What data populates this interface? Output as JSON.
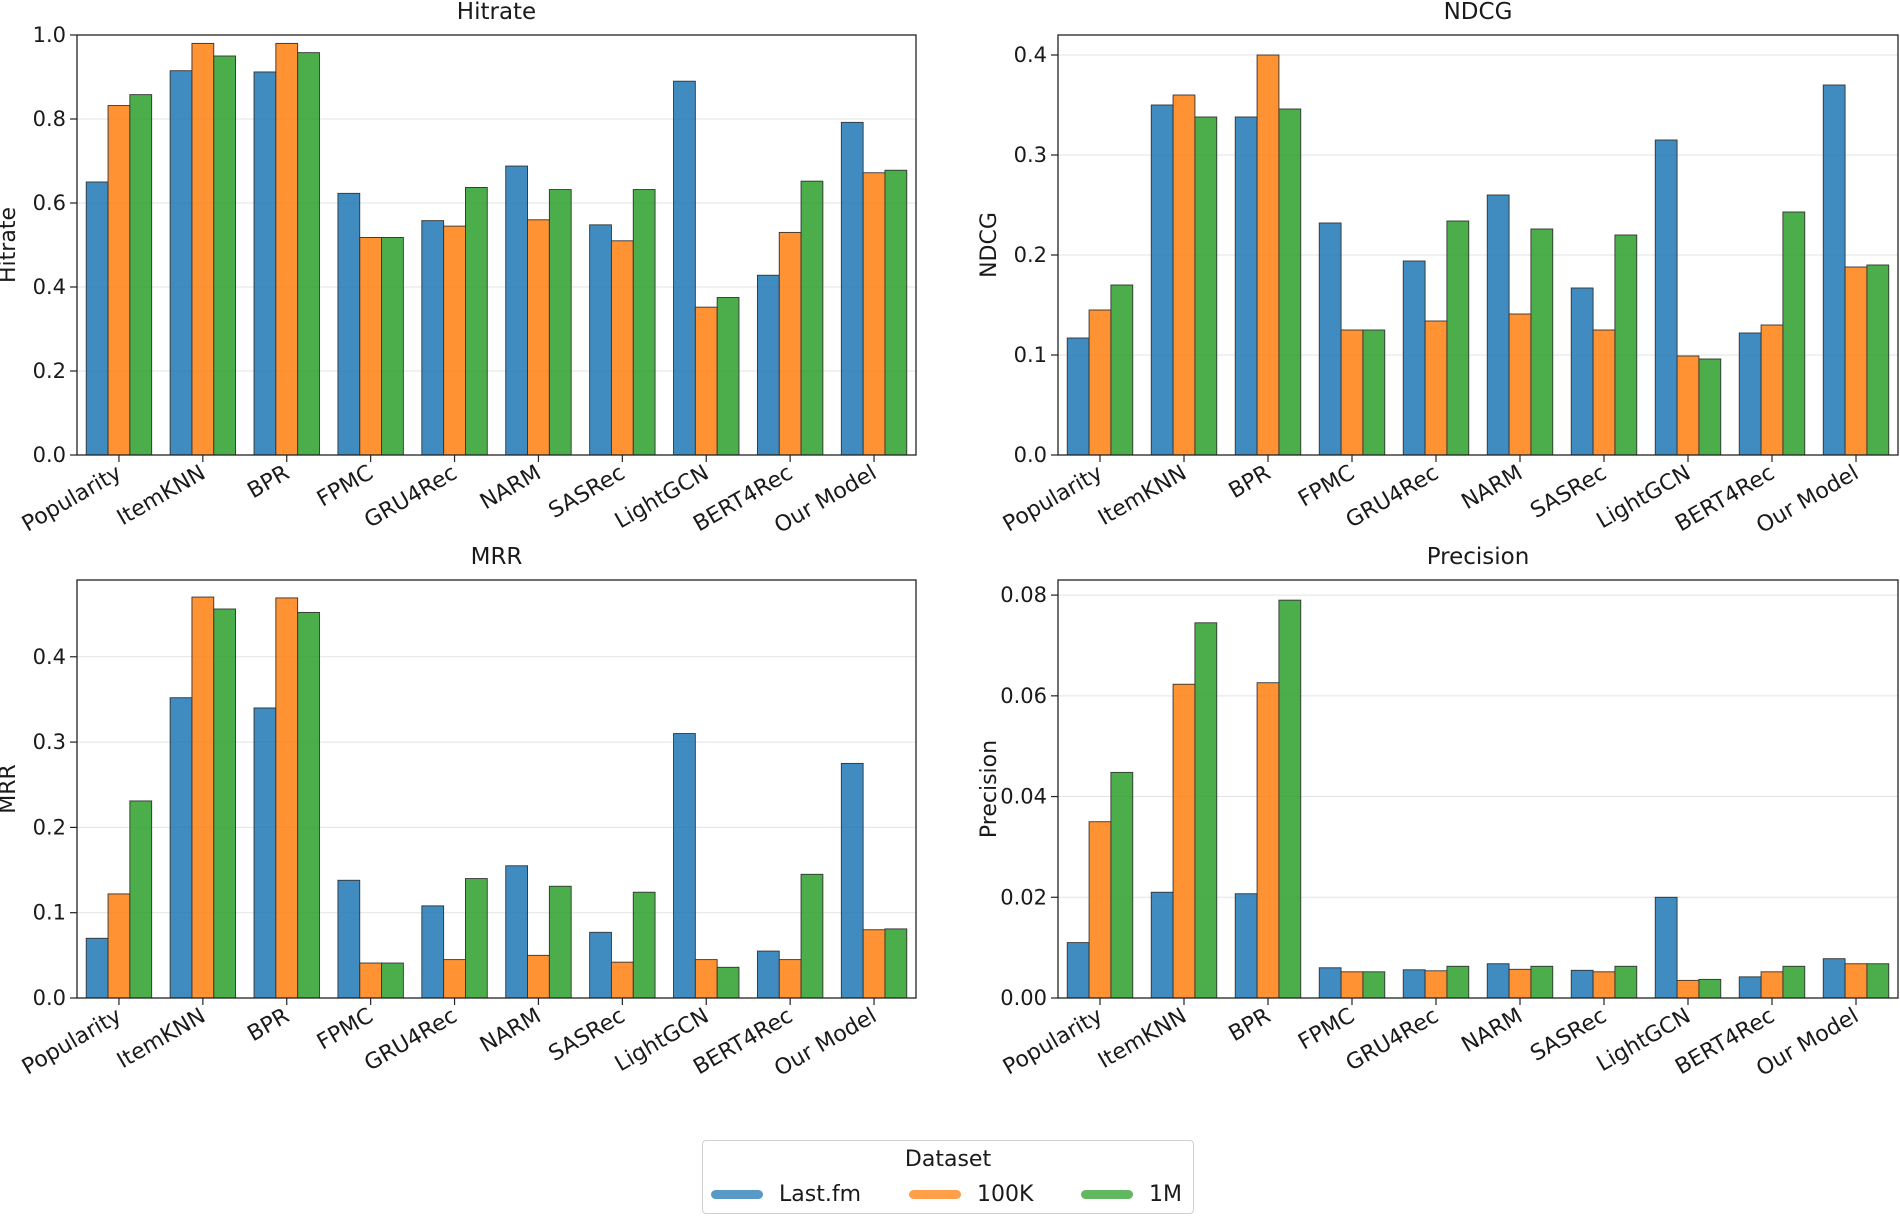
{
  "chart_data": [
    {
      "type": "bar",
      "title": "Hitrate",
      "xlabel": "",
      "ylabel": "Hitrate",
      "ylim": [
        0,
        1.0
      ],
      "yticks": [
        "0.0",
        "0.2",
        "0.4",
        "0.6",
        "0.8",
        "1.0"
      ],
      "categories": [
        "Popularity",
        "ItemKNN",
        "BPR",
        "FPMC",
        "GRU4Rec",
        "NARM",
        "SASRec",
        "LightGCN",
        "BERT4Rec",
        "Our Model"
      ],
      "series": [
        {
          "name": "Last.fm",
          "values": [
            0.65,
            0.915,
            0.912,
            0.623,
            0.558,
            0.688,
            0.548,
            0.89,
            0.428,
            0.792
          ]
        },
        {
          "name": "100K",
          "values": [
            0.832,
            0.98,
            0.98,
            0.518,
            0.545,
            0.56,
            0.51,
            0.352,
            0.53,
            0.672
          ]
        },
        {
          "name": "1M",
          "values": [
            0.858,
            0.95,
            0.958,
            0.518,
            0.637,
            0.632,
            0.632,
            0.375,
            0.652,
            0.678
          ]
        }
      ],
      "grid": "horizontal"
    },
    {
      "type": "bar",
      "title": "NDCG",
      "xlabel": "",
      "ylabel": "NDCG",
      "ylim": [
        0,
        0.42
      ],
      "yticks": [
        "0.0",
        "0.1",
        "0.2",
        "0.3",
        "0.4"
      ],
      "categories": [
        "Popularity",
        "ItemKNN",
        "BPR",
        "FPMC",
        "GRU4Rec",
        "NARM",
        "SASRec",
        "LightGCN",
        "BERT4Rec",
        "Our Model"
      ],
      "series": [
        {
          "name": "Last.fm",
          "values": [
            0.117,
            0.35,
            0.338,
            0.232,
            0.194,
            0.26,
            0.167,
            0.315,
            0.122,
            0.37
          ]
        },
        {
          "name": "100K",
          "values": [
            0.145,
            0.36,
            0.4,
            0.125,
            0.134,
            0.141,
            0.125,
            0.099,
            0.13,
            0.188
          ]
        },
        {
          "name": "1M",
          "values": [
            0.17,
            0.338,
            0.346,
            0.125,
            0.234,
            0.226,
            0.22,
            0.096,
            0.243,
            0.19
          ]
        }
      ],
      "grid": "horizontal"
    },
    {
      "type": "bar",
      "title": "MRR",
      "xlabel": "",
      "ylabel": "MRR",
      "ylim": [
        0,
        0.49
      ],
      "yticks": [
        "0.0",
        "0.1",
        "0.2",
        "0.3",
        "0.4"
      ],
      "categories": [
        "Popularity",
        "ItemKNN",
        "BPR",
        "FPMC",
        "GRU4Rec",
        "NARM",
        "SASRec",
        "LightGCN",
        "BERT4Rec",
        "Our Model"
      ],
      "series": [
        {
          "name": "Last.fm",
          "values": [
            0.07,
            0.352,
            0.34,
            0.138,
            0.108,
            0.155,
            0.077,
            0.31,
            0.055,
            0.275
          ]
        },
        {
          "name": "100K",
          "values": [
            0.122,
            0.47,
            0.469,
            0.041,
            0.045,
            0.05,
            0.042,
            0.045,
            0.045,
            0.08
          ]
        },
        {
          "name": "1M",
          "values": [
            0.231,
            0.456,
            0.452,
            0.041,
            0.14,
            0.131,
            0.124,
            0.036,
            0.145,
            0.081
          ]
        }
      ],
      "grid": "horizontal"
    },
    {
      "type": "bar",
      "title": "Precision",
      "xlabel": "",
      "ylabel": "Precision",
      "ylim": [
        0,
        0.083
      ],
      "yticks": [
        "0.00",
        "0.02",
        "0.04",
        "0.06",
        "0.08"
      ],
      "categories": [
        "Popularity",
        "ItemKNN",
        "BPR",
        "FPMC",
        "GRU4Rec",
        "NARM",
        "SASRec",
        "LightGCN",
        "BERT4Rec",
        "Our Model"
      ],
      "series": [
        {
          "name": "Last.fm",
          "values": [
            0.011,
            0.021,
            0.0207,
            0.006,
            0.0056,
            0.0068,
            0.0055,
            0.02,
            0.0042,
            0.0078
          ]
        },
        {
          "name": "100K",
          "values": [
            0.035,
            0.0623,
            0.0626,
            0.0052,
            0.0054,
            0.0057,
            0.0052,
            0.0035,
            0.0052,
            0.0068
          ]
        },
        {
          "name": "1M",
          "values": [
            0.0448,
            0.0745,
            0.079,
            0.0052,
            0.0063,
            0.0063,
            0.0063,
            0.0037,
            0.0063,
            0.0068
          ]
        }
      ],
      "grid": "horizontal"
    }
  ],
  "legend": {
    "title": "Dataset",
    "items": [
      {
        "label": "Last.fm",
        "color": "#1f77b4"
      },
      {
        "label": "100K",
        "color": "#ff7f0e"
      },
      {
        "label": "1M",
        "color": "#2ca02c"
      }
    ],
    "placement": "bottom-center"
  },
  "colors": {
    "Last.fm": "#1f77b4",
    "100K": "#ff7f0e",
    "1M": "#2ca02c"
  }
}
